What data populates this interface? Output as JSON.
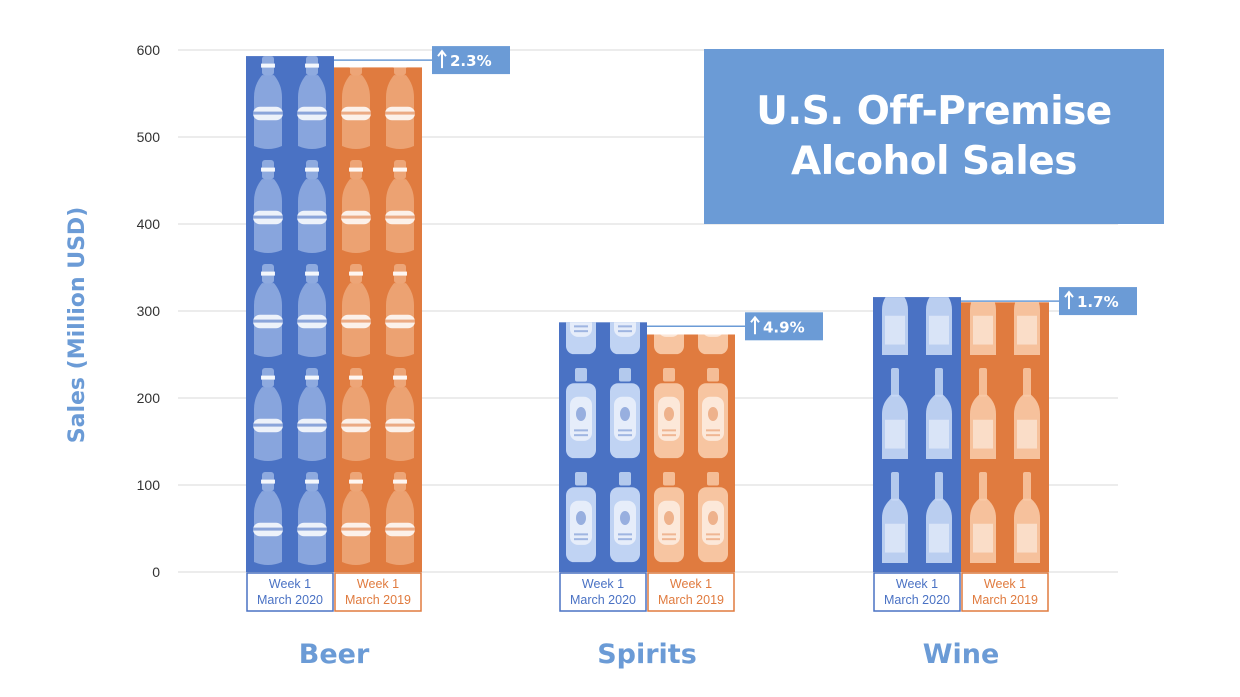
{
  "chart_data": {
    "type": "bar",
    "title_lines": [
      "U.S. Off-Premise",
      "Alcohol Sales"
    ],
    "ylabel": "Sales (Million USD)",
    "ylim": [
      0,
      600
    ],
    "yticks": [
      0,
      100,
      200,
      300,
      400,
      500,
      600
    ],
    "grid": true,
    "categories": [
      "Beer",
      "Spirits",
      "Wine"
    ],
    "series": [
      {
        "name": "Week 1 March 2020",
        "label_lines": [
          "Week 1",
          "March 2020"
        ],
        "values": [
          593,
          287,
          316
        ]
      },
      {
        "name": "Week 1 March 2019",
        "label_lines": [
          "Week 1",
          "March 2019"
        ],
        "values": [
          580,
          273,
          310
        ]
      }
    ],
    "changes": [
      "2.3%",
      "4.9%",
      "1.7%"
    ]
  },
  "colors": {
    "series_2020": "#4a72c4",
    "series_2019": "#e07b3f",
    "accent": "#6b9bd6",
    "grid": "#d9d9d9",
    "icon_light_blue": "#c6d8f5",
    "icon_light_orange": "#f8c9a6"
  },
  "icons": [
    "beer-bottle-icon",
    "spirits-bottle-icon",
    "wine-bottle-icon"
  ]
}
